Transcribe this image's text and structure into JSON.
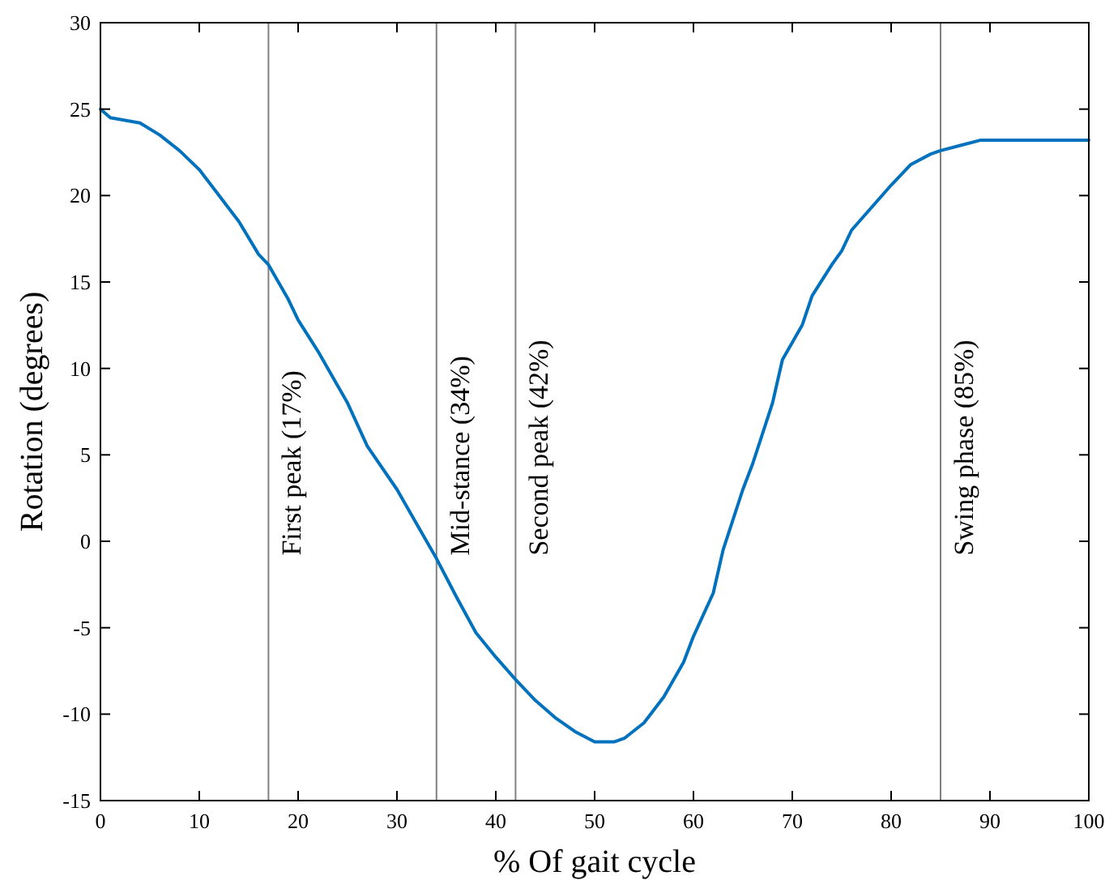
{
  "chart_data": {
    "type": "line",
    "xlabel": "% Of gait cycle",
    "ylabel": "Rotation (degrees)",
    "x": [
      0,
      1,
      4,
      6,
      8,
      10,
      12,
      14,
      16,
      17,
      19,
      20,
      22,
      24,
      25,
      27,
      30,
      32,
      34,
      36,
      38,
      40,
      42,
      44,
      46,
      48,
      50,
      52,
      53,
      55,
      57,
      59,
      60,
      62,
      63,
      65,
      66,
      68,
      69,
      71,
      72,
      74,
      75,
      76,
      78,
      80,
      82,
      84,
      85,
      87,
      89,
      100
    ],
    "series": [
      {
        "color": "#0072bd",
        "values": [
          25.0,
          24.5,
          24.2,
          23.5,
          22.6,
          21.5,
          20.0,
          18.5,
          16.6,
          16.0,
          14.0,
          12.8,
          11.0,
          9.0,
          8.0,
          5.5,
          3.0,
          1.0,
          -1.0,
          -3.2,
          -5.3,
          -6.7,
          -8.0,
          -9.2,
          -10.2,
          -11.0,
          -11.6,
          -11.6,
          -11.4,
          -10.5,
          -9.0,
          -7.0,
          -5.5,
          -3.0,
          -0.5,
          3.0,
          4.5,
          8.0,
          10.5,
          12.5,
          14.2,
          16.0,
          16.8,
          18.0,
          19.3,
          20.6,
          21.8,
          22.4,
          22.6,
          22.9,
          23.2,
          23.2
        ]
      }
    ],
    "xlim": [
      0,
      100
    ],
    "xticks": [
      0,
      10,
      20,
      30,
      40,
      50,
      60,
      70,
      80,
      90,
      100
    ],
    "ylim": [
      -15,
      30
    ],
    "yticks": [
      -15,
      -10,
      -5,
      0,
      5,
      10,
      15,
      20,
      25,
      30
    ],
    "grid": false,
    "marker": "none",
    "line_style": "solid",
    "ref_lines": [
      {
        "axis": "x",
        "value": 17,
        "label": "First peak (17%)",
        "color": "#808080"
      },
      {
        "axis": "x",
        "value": 34,
        "label": "Mid-stance (34%)",
        "color": "#808080"
      },
      {
        "axis": "x",
        "value": 42,
        "label": "Second peak (42%)",
        "color": "#808080"
      },
      {
        "axis": "x",
        "value": 85,
        "label": "Swing phase (85%)",
        "color": "#808080"
      }
    ]
  }
}
